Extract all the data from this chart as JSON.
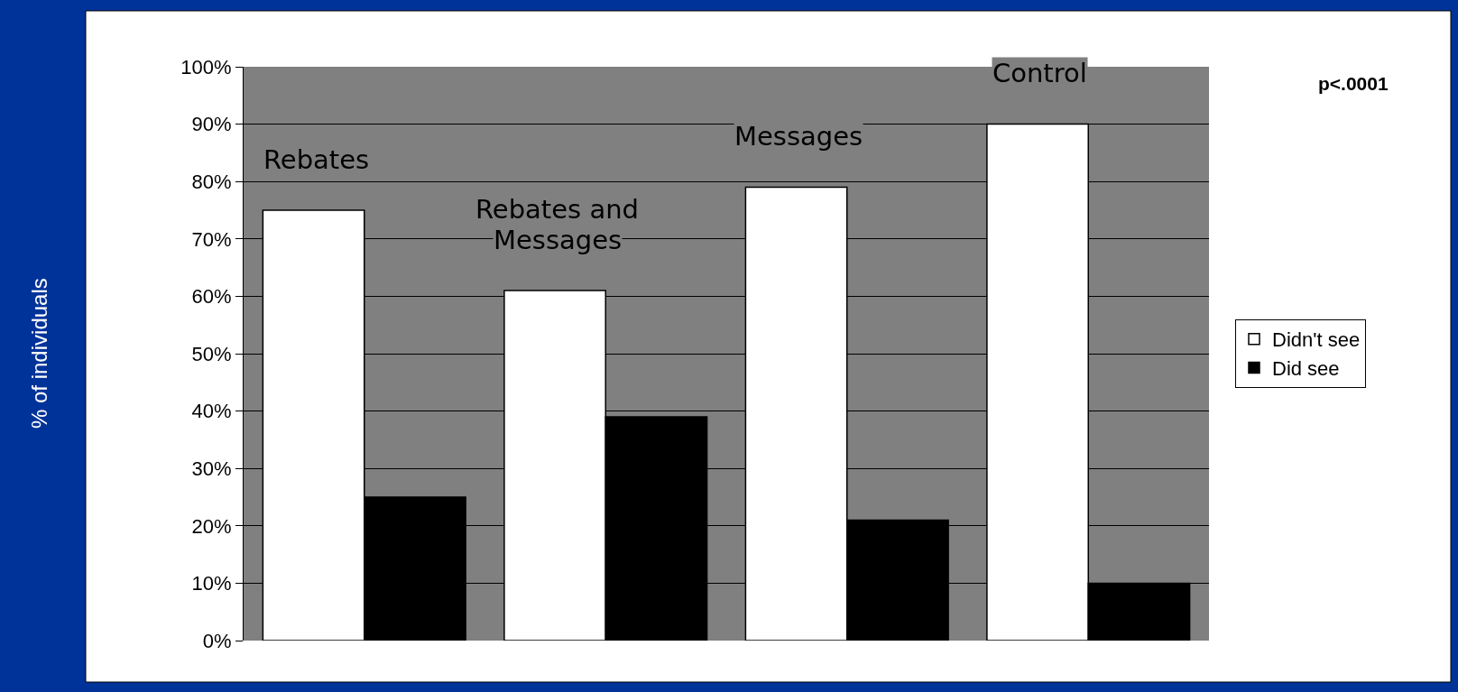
{
  "chart_data": {
    "type": "bar",
    "categories": [
      "Rebates",
      "Rebates and Messages",
      "Messages",
      "Control"
    ],
    "series": [
      {
        "name": "Didn't see",
        "color": "#ffffff",
        "values": [
          75,
          61,
          79,
          90
        ]
      },
      {
        "name": "Did see",
        "color": "#000000",
        "values": [
          25,
          39,
          21,
          10
        ]
      }
    ],
    "ylim": [
      0,
      100
    ],
    "yticks": [
      {
        "value": 0,
        "label": "0%"
      },
      {
        "value": 10,
        "label": "10%"
      },
      {
        "value": 20,
        "label": "20%"
      },
      {
        "value": 30,
        "label": "30%"
      },
      {
        "value": 40,
        "label": "40%"
      },
      {
        "value": 50,
        "label": "50%"
      },
      {
        "value": 60,
        "label": "60%"
      },
      {
        "value": 70,
        "label": "70%"
      },
      {
        "value": 80,
        "label": "80%"
      },
      {
        "value": 90,
        "label": "90%"
      },
      {
        "value": 100,
        "label": "100%"
      }
    ],
    "grid": "y",
    "legend": "right",
    "annotations": [
      "% of individuals",
      "p<.0001"
    ]
  }
}
